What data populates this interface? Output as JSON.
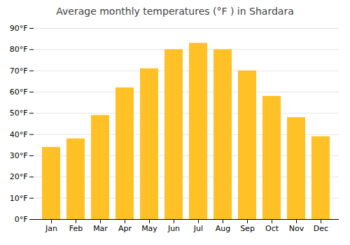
{
  "chart_data": {
    "type": "bar",
    "title": "Average monthly temperatures (°F ) in Shardara",
    "categories": [
      "Jan",
      "Feb",
      "Mar",
      "Apr",
      "May",
      "Jun",
      "Jul",
      "Aug",
      "Sep",
      "Oct",
      "Nov",
      "Dec"
    ],
    "values": [
      34,
      38,
      49,
      62,
      71,
      80,
      83,
      80,
      70,
      58,
      48,
      39
    ],
    "color": "#FFC125",
    "ylim": [
      0,
      90
    ],
    "yticks": [
      {
        "value": 0,
        "label": "0°F"
      },
      {
        "value": 10,
        "label": "10°F"
      },
      {
        "value": 20,
        "label": "20°F"
      },
      {
        "value": 30,
        "label": "30°F"
      },
      {
        "value": 40,
        "label": "40°F"
      },
      {
        "value": 50,
        "label": "50°F"
      },
      {
        "value": 60,
        "label": "60°F"
      },
      {
        "value": 70,
        "label": "70°F"
      },
      {
        "value": 80,
        "label": "80°F"
      },
      {
        "value": 90,
        "label": "90°F"
      }
    ],
    "grid": true
  }
}
